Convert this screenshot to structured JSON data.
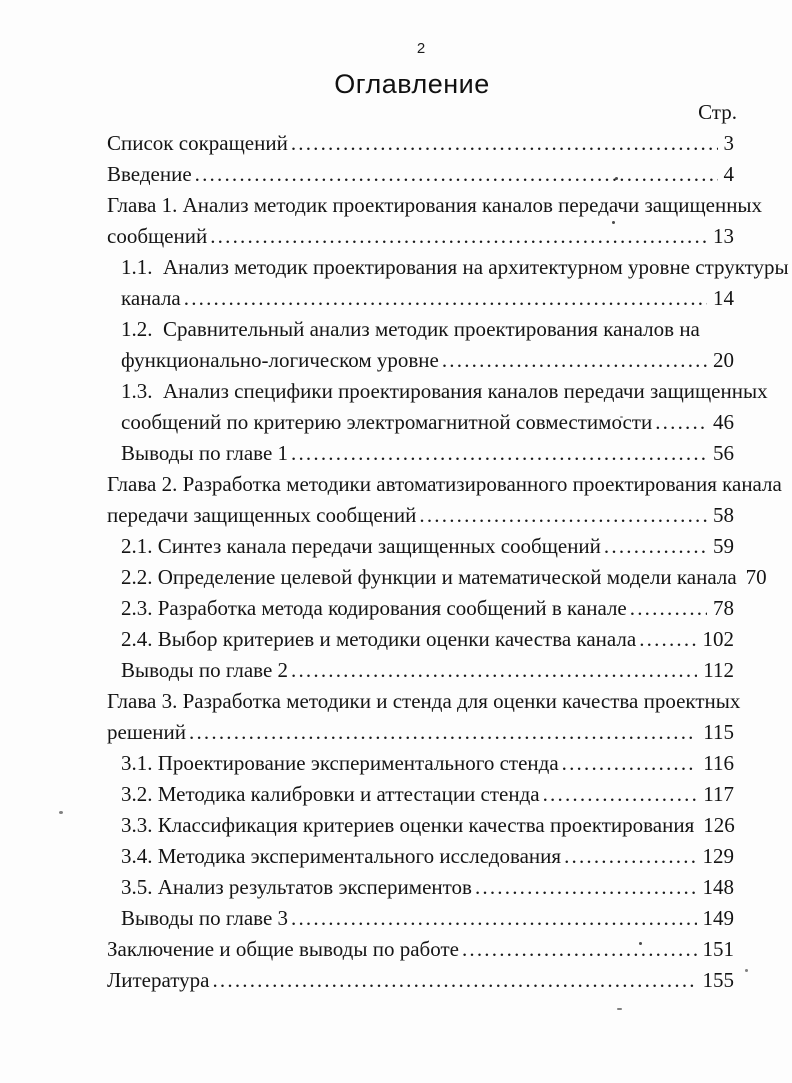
{
  "page": {
    "number": "2",
    "title": "Оглавление",
    "pages_column_header": "Стр."
  },
  "toc": {
    "entries": [
      {
        "level": 0,
        "lines": [
          "Список сокращений"
        ],
        "page": "3"
      },
      {
        "level": 0,
        "lines": [
          "Введение"
        ],
        "page": "4"
      },
      {
        "level": 0,
        "lines": [
          "Глава 1. Анализ методик проектирования каналов передачи защищенных",
          "сообщений"
        ],
        "page": "13"
      },
      {
        "level": 1,
        "lines": [
          "1.1.  Анализ методик проектирования на архитектурном уровне структуры",
          "канала"
        ],
        "page": "14"
      },
      {
        "level": 1,
        "lines": [
          "1.2.  Сравнительный анализ методик проектирования каналов на",
          "функционально-логическом уровне"
        ],
        "page": "20"
      },
      {
        "level": 1,
        "lines": [
          "1.3.  Анализ специфики проектирования каналов передачи защищенных",
          "сообщений по критерию электромагнитной совместимости"
        ],
        "page": "46"
      },
      {
        "level": 1,
        "lines": [
          "Выводы по главе 1"
        ],
        "page": "56"
      },
      {
        "level": 0,
        "lines": [
          "Глава 2. Разработка методики автоматизированного проектирования канала",
          "передачи защищенных сообщений"
        ],
        "page": "58"
      },
      {
        "level": 1,
        "lines": [
          "2.1. Синтез канала передачи защищенных сообщений"
        ],
        "page": "59"
      },
      {
        "level": 1,
        "lines": [
          "2.2. Определение целевой функции и математической модели канала"
        ],
        "page": "70"
      },
      {
        "level": 1,
        "lines": [
          "2.3. Разработка метода кодирования сообщений в канале"
        ],
        "page": "78"
      },
      {
        "level": 1,
        "lines": [
          "2.4. Выбор критериев и методики оценки качества канала"
        ],
        "page": "102"
      },
      {
        "level": 1,
        "lines": [
          "Выводы по главе 2"
        ],
        "page": "112"
      },
      {
        "level": 0,
        "lines": [
          "Глава 3. Разработка методики и стенда для оценки качества проектных",
          "решений"
        ],
        "page": "115"
      },
      {
        "level": 1,
        "lines": [
          "3.1. Проектирование экспериментального стенда"
        ],
        "page": "116"
      },
      {
        "level": 1,
        "lines": [
          "3.2. Методика калибровки и аттестации стенда"
        ],
        "page": "117"
      },
      {
        "level": 1,
        "lines": [
          "3.3. Классификация критериев оценки качества проектирования"
        ],
        "page": "126"
      },
      {
        "level": 1,
        "lines": [
          "3.4. Методика экспериментального исследования"
        ],
        "page": "129"
      },
      {
        "level": 1,
        "lines": [
          "3.5. Анализ результатов экспериментов"
        ],
        "page": "148"
      },
      {
        "level": 1,
        "lines": [
          "Выводы по главе 3"
        ],
        "page": "149"
      },
      {
        "level": 0,
        "lines": [
          "Заключение и общие выводы по работе"
        ],
        "page": "151"
      },
      {
        "level": 0,
        "lines": [
          "Литература"
        ],
        "page": "155"
      }
    ]
  }
}
